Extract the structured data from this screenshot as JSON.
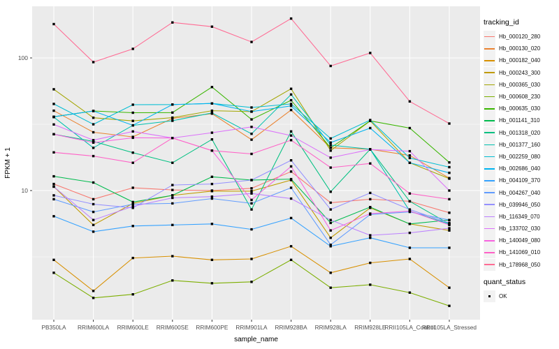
{
  "chart_data": {
    "type": "line",
    "title": "",
    "xlabel": "sample_name",
    "ylabel": "FPKM + 1",
    "y_scale": "log10",
    "y_ticks": [
      100,
      10
    ],
    "y_minor_ticks": [
      31.62,
      3.162
    ],
    "ylim": [
      1.05,
      245
    ],
    "grid": "on",
    "legend_position": "right",
    "legend_title": "tracking_id",
    "quant_legend": {
      "title": "quant_status",
      "items": [
        {
          "label": "OK"
        }
      ]
    },
    "point_color": "#000000",
    "panel_bg": "#EBEBEB",
    "grid_color": "#FFFFFF",
    "tick_label_color": "#4D4D4D",
    "x_categories": [
      "PB350LA",
      "RRIM600LA",
      "RRIM600LE",
      "RRIM600SE",
      "RRIM600PE",
      "RRIM901LA",
      "RRIM928BA",
      "RRIM928LA",
      "RRIM928LE",
      "RRII105LA_Control",
      "RRII105LA_Stressed"
    ],
    "series": [
      {
        "name": "Hb_000120_280",
        "color": "#F8766D",
        "values": [
          11.2,
          8.6,
          10.5,
          10.1,
          10.0,
          10.4,
          13.9,
          8.1,
          8.6,
          8.3,
          6.8
        ]
      },
      {
        "name": "Hb_000130_020",
        "color": "#EA8331",
        "values": [
          40,
          27.5,
          25.4,
          35,
          38,
          24.2,
          40.5,
          21,
          20.5,
          18.4,
          12.4
        ]
      },
      {
        "name": "Hb_000182_040",
        "color": "#D89000",
        "values": [
          3.0,
          1.75,
          3.1,
          3.2,
          3.0,
          3.05,
          3.8,
          2.4,
          2.85,
          3.05,
          1.85
        ]
      },
      {
        "name": "Hb_000243_300",
        "color": "#C09B00",
        "values": [
          10.7,
          5.5,
          8.0,
          9.2,
          9.9,
          9.9,
          12.0,
          4.4,
          7.4,
          5.6,
          5.0
        ]
      },
      {
        "name": "Hb_000365_030",
        "color": "#A3A500",
        "values": [
          58,
          35.4,
          33.5,
          35.5,
          40,
          39.4,
          58.5,
          20,
          33.5,
          16.2,
          12.3
        ]
      },
      {
        "name": "Hb_000608_230",
        "color": "#7CAE00",
        "values": [
          2.4,
          1.55,
          1.65,
          2.1,
          2.0,
          2.05,
          3.0,
          1.85,
          1.95,
          1.7,
          1.35
        ]
      },
      {
        "name": "Hb_000635_030",
        "color": "#39B600",
        "values": [
          36,
          39.8,
          38.6,
          38.7,
          60.3,
          34.4,
          48,
          21,
          33.5,
          29.6,
          16.3
        ]
      },
      {
        "name": "Hb_001141_310",
        "color": "#00BB4E",
        "values": [
          12.8,
          11.5,
          8.2,
          9.2,
          12.7,
          12.0,
          12.2,
          5.7,
          7.5,
          5.6,
          6.0
        ]
      },
      {
        "name": "Hb_001318_020",
        "color": "#00C081",
        "values": [
          26.6,
          23.5,
          19.3,
          16.2,
          24.3,
          7.2,
          27.9,
          9.8,
          20.5,
          8.3,
          5.6
        ]
      },
      {
        "name": "Hb_001377_160",
        "color": "#00C0AF",
        "values": [
          35.8,
          21,
          31,
          33.6,
          38.5,
          26.8,
          53,
          22,
          20.5,
          7.0,
          5.6
        ]
      },
      {
        "name": "Hb_002259_080",
        "color": "#00BDD3",
        "values": [
          45,
          31.6,
          44.4,
          44.5,
          45.4,
          42.3,
          45,
          24.7,
          34,
          17.6,
          15
        ]
      },
      {
        "name": "Hb_002686_040",
        "color": "#00B4EF",
        "values": [
          36,
          39.8,
          31,
          44.5,
          45.4,
          39.4,
          43.5,
          23,
          29.6,
          16.2,
          13.6
        ]
      },
      {
        "name": "Hb_004109_370",
        "color": "#35A2FF",
        "values": [
          6.4,
          4.9,
          5.4,
          5.5,
          5.6,
          5.1,
          6.2,
          3.8,
          4.4,
          3.7,
          3.7
        ]
      },
      {
        "name": "Hb_004267_040",
        "color": "#619CFF",
        "values": [
          8.6,
          6.9,
          7.9,
          8.0,
          8.7,
          8.0,
          10.5,
          3.9,
          6.6,
          6.9,
          6.0
        ]
      },
      {
        "name": "Hb_039946_050",
        "color": "#9590FF",
        "values": [
          9.2,
          7.9,
          7.4,
          11.0,
          11.2,
          12.0,
          16.9,
          7.2,
          9.6,
          7.2,
          5.7
        ]
      },
      {
        "name": "Hb_116349_070",
        "color": "#BC80FF",
        "values": [
          10.7,
          6.0,
          7.6,
          8.8,
          9.0,
          9.5,
          8.7,
          6.0,
          4.6,
          4.8,
          5.2
        ]
      },
      {
        "name": "Hb_133702_030",
        "color": "#DC71FA",
        "values": [
          31.5,
          24,
          27.9,
          24.9,
          27.3,
          30.2,
          26,
          17.7,
          20.4,
          19.8,
          10.0
        ]
      },
      {
        "name": "Hb_140049_080",
        "color": "#F763E0",
        "values": [
          26.6,
          23,
          25,
          24.9,
          20,
          8.5,
          15.2,
          5.0,
          6.7,
          7.0,
          5.5
        ]
      },
      {
        "name": "Hb_141069_010",
        "color": "#FF61C7",
        "values": [
          19.4,
          18.2,
          16.2,
          24.9,
          20,
          18.9,
          24,
          14.9,
          16,
          9.5,
          8.6
        ]
      },
      {
        "name": "Hb_178968_050",
        "color": "#FF6B94",
        "values": [
          180,
          93,
          117,
          185,
          172,
          132,
          198,
          87,
          109,
          47,
          32
        ]
      }
    ]
  }
}
